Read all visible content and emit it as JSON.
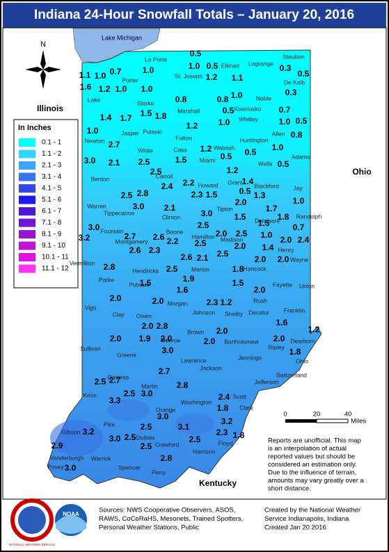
{
  "title": "Indiana 24-Hour Snowfall Totals – January 20, 2016",
  "compass": "N",
  "places": {
    "lake": "Lake Michigan",
    "west": "Illinois",
    "east": "Ohio",
    "south": "Kentucky"
  },
  "legend": {
    "title": "In Inches",
    "items": [
      {
        "label": "0.1 - 1",
        "color": "#00ffff"
      },
      {
        "label": "1.1 - 2",
        "color": "#33d6ff"
      },
      {
        "label": "2.1 - 3",
        "color": "#3ba6f5"
      },
      {
        "label": "3.1 - 4",
        "color": "#3a73ee"
      },
      {
        "label": "4.1 - 5",
        "color": "#3346ee"
      },
      {
        "label": "5.1 - 6",
        "color": "#1a1aee"
      },
      {
        "label": "6.1 - 7",
        "color": "#4a1ad6"
      },
      {
        "label": "7.1 - 8",
        "color": "#7014d6"
      },
      {
        "label": "8.1 - 9",
        "color": "#9a14d6"
      },
      {
        "label": "9.1 - 10",
        "color": "#c214d6"
      },
      {
        "label": "10.1 - 11",
        "color": "#e014e0"
      },
      {
        "label": "11.1 - 12",
        "color": "#ff33f0"
      }
    ]
  },
  "counties": [
    "La Porte",
    "Elkhart",
    "Lagrange",
    "Steuben",
    "St. Joseph",
    "De Kalb",
    "Porter",
    "Lake",
    "Noble",
    "Kosciusko",
    "Marshall",
    "Starke",
    "Whitley",
    "Allen",
    "Jasper",
    "Pulaski",
    "Fulton",
    "Newton",
    "White",
    "Cass",
    "Huntington",
    "Wabash",
    "Wells",
    "Adams",
    "Miami",
    "Benton",
    "Carroll",
    "Howard",
    "Grant",
    "Blackford",
    "Jay",
    "Warren",
    "Tippecanoe",
    "Tipton",
    "Randolph",
    "Clinton",
    "Delaware",
    "Fountain",
    "Boone",
    "Madison",
    "Montgomery",
    "Hamilton",
    "Henry",
    "Vermillion",
    "Hendricks",
    "Marion",
    "Hancock",
    "Wayne",
    "Parke",
    "Putnam",
    "Fayette",
    "Union",
    "Rush",
    "Morgan",
    "Johnson",
    "Shelby",
    "Vigo",
    "Clay",
    "Owen",
    "Franklin",
    "Decatur",
    "Brown",
    "Monroe",
    "Bartholomew",
    "Dearborn",
    "Ripley",
    "Sullivan",
    "Greene",
    "Ohio",
    "Lawrence",
    "Jennings",
    "Jackson",
    "Switzerland",
    "Jefferson",
    "Daviess",
    "Martin",
    "Knox",
    "Scott",
    "Washington",
    "Clark",
    "Orange",
    "Pike",
    "Dubois",
    "Gibson",
    "Crawford",
    "Harrison",
    "Floyd",
    "Posey",
    "Vanderburgh",
    "Warrick",
    "Spencer",
    "Perry"
  ],
  "reports": [
    "0.5",
    "1.0",
    "0.5",
    "1.0",
    "1.2",
    "1.1",
    "0.3",
    "0.5",
    "1.1",
    "1.0",
    "0.7",
    "1.6",
    "1.2",
    "1.0",
    "1.0",
    "0.8",
    "0.8",
    "1.0",
    "0.3",
    "0.5",
    "1.5",
    "1.8",
    "0.7",
    "1.4",
    "1.7",
    "1.0",
    "1.0",
    "0.5",
    "1.2",
    "1.0",
    "0.8",
    "2.7",
    "1.0",
    "1.2",
    "0.5",
    "0.5",
    "3.0",
    "2.1",
    "2.5",
    "1.5",
    "0.5",
    "2.5",
    "1.2",
    "1.4",
    "2.2",
    "2.4",
    "0.5",
    "1.3",
    "1.0",
    "2.5",
    "2.8",
    "2.3",
    "1.5",
    "2.0",
    "3.0",
    "2.1",
    "3.0",
    "1.7",
    "1.8",
    "1.5",
    "0.7",
    "3.0",
    "2.5",
    "1.5",
    "2.0",
    "2.5",
    "2.0",
    "2.4",
    "3.2",
    "2.7",
    "2.6",
    "2.2",
    "2.5",
    "1.0",
    "2.0",
    "1.4",
    "2.6",
    "2.3",
    "2.5",
    "2.0",
    "2.0",
    "2.8",
    "2.6",
    "2.1",
    "2.5",
    "1.8",
    "1.5",
    "1.9",
    "1.5",
    "2.0",
    "1.6",
    "2.0",
    "2.0",
    "2.3",
    "1.2",
    "2.0",
    "2.8",
    "2.0",
    "1.6",
    "1.2",
    "2.0",
    "1.9",
    "2.0",
    "2.0",
    "2.0",
    "3.0",
    "1.8",
    "2.7",
    "2.8",
    "2.5",
    "2.7",
    "2.5",
    "3.0",
    "3.3",
    "2.4",
    "1.8",
    "3.0",
    "3.1",
    "3.2",
    "3.2",
    "3.0",
    "2.5",
    "2.5",
    "2.5",
    "2.3",
    "1.8",
    "2.9",
    "2.5",
    "3.0",
    "2.8"
  ],
  "scale": {
    "ticks": [
      "0",
      "20",
      "40"
    ],
    "unit": "Miles"
  },
  "disclaimer": [
    "Reports are unofficial. This map",
    "is an interpolation of actual",
    "reported values but should be",
    "considered an estimation only.",
    "Due to the influence of terrain,",
    "amounts may vary greatly over a",
    "short distance."
  ],
  "sources": [
    "Sources: NWS Cooperative Observers, ASOS,",
    "RAWS, CoCoRaHS, Mesonets, Trained Spotters,",
    "Personal Weather Stations, Public"
  ],
  "credit": [
    "Created by the National Weather",
    "Service Indianapolis, Indiana",
    "Created Jan 20 2016"
  ],
  "logos": {
    "nws": "NATIONAL WEATHER SERVICE",
    "noaa": "NOAA"
  }
}
